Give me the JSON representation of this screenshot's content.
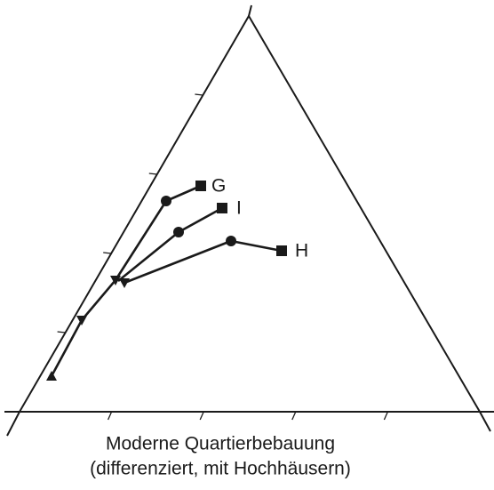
{
  "series_labels": [
    "G",
    "I",
    "H"
  ],
  "caption": {
    "line1": "Moderne Quartierbebauung",
    "line2": "(differenziert, mit Hochhäusern)"
  }
}
